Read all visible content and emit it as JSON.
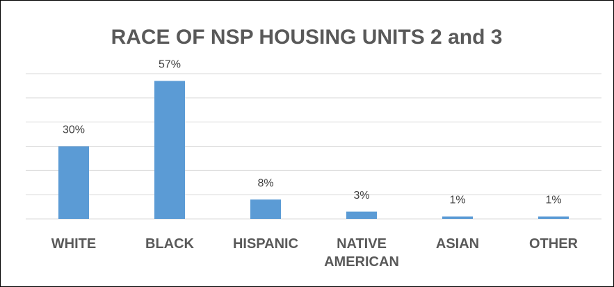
{
  "chart_data": {
    "type": "bar",
    "title": "RACE OF NSP HOUSING UNITS 2 and 3",
    "categories": [
      "WHITE",
      "BLACK",
      "HISPANIC",
      "NATIVE AMERICAN",
      "ASIAN",
      "OTHER"
    ],
    "values": [
      30,
      57,
      8,
      3,
      1,
      1
    ],
    "value_labels": [
      "30%",
      "57%",
      "8%",
      "3%",
      "1%",
      "1%"
    ],
    "color": "#5b9bd5",
    "ylim": [
      0,
      60
    ],
    "yticks": [
      0,
      10,
      20,
      30,
      40,
      50,
      60
    ],
    "grid": true
  }
}
